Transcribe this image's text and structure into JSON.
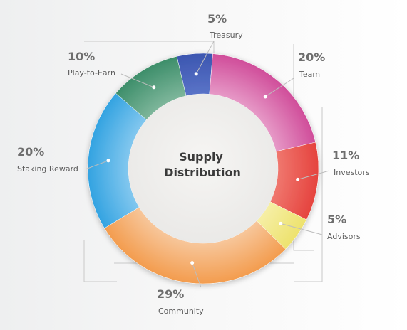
{
  "chart_data": {
    "type": "pie",
    "title": "Supply Distribution",
    "title_lines": [
      "Supply",
      "Distribution"
    ],
    "slices": [
      {
        "label": "Treasury",
        "value": 5,
        "value_label": "5%",
        "color": "#3c56b0",
        "color2": "#5a74c8"
      },
      {
        "label": "Team",
        "value": 20,
        "value_label": "20%",
        "color": "#d04d9a",
        "color2": "#e79bc8"
      },
      {
        "label": "Investors",
        "value": 11,
        "value_label": "11%",
        "color": "#e5433e",
        "color2": "#f0786f"
      },
      {
        "label": "Advisors",
        "value": 5,
        "value_label": "5%",
        "color": "#ede26d",
        "color2": "#f6efa7"
      },
      {
        "label": "Community",
        "value": 29,
        "value_label": "29%",
        "color": "#f39c4e",
        "color2": "#f7c79c"
      },
      {
        "label": "Staking Reward",
        "value": 20,
        "value_label": "20%",
        "color": "#33a3e1",
        "color2": "#84c8ef"
      },
      {
        "label": "Play-to-Earn",
        "value": 10,
        "value_label": "10%",
        "color": "#3d8e6a",
        "color2": "#7fb79c"
      }
    ],
    "legend": "none"
  }
}
